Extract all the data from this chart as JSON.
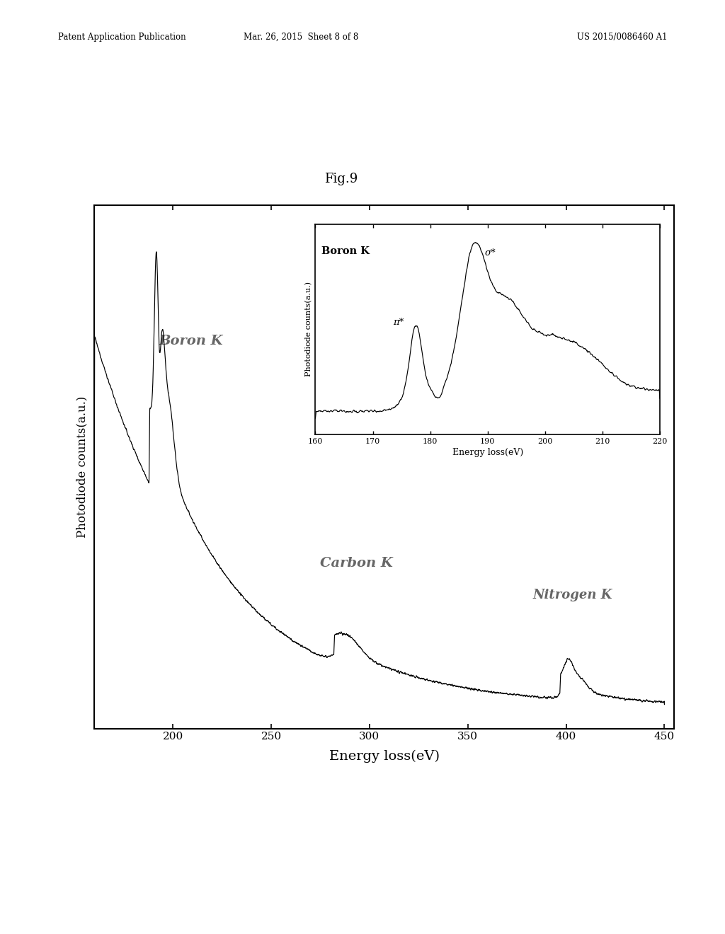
{
  "fig_label": "Fig.9",
  "xlabel": "Energy loss(eV)",
  "ylabel": "Photodiode counts(a.u.)",
  "xticks": [
    200,
    250,
    300,
    350,
    400,
    450
  ],
  "header_left": "Patent Application Publication",
  "header_mid": "Mar. 26, 2015  Sheet 8 of 8",
  "header_right": "US 2015/0086460 A1",
  "boron_label": "Boron K",
  "carbon_label": "Carbon K",
  "nitrogen_label": "Nitrogen K",
  "inset_xlabel": "Energy loss(eV)",
  "inset_ylabel": "Photodiode counts(a.u.)",
  "inset_xticks": [
    160,
    170,
    180,
    190,
    200,
    210,
    220
  ],
  "inset_boron_label": "Boron K",
  "inset_pi_label": "π*",
  "inset_sigma_label": "σ*",
  "background_color": "#ffffff",
  "line_color": "#000000"
}
